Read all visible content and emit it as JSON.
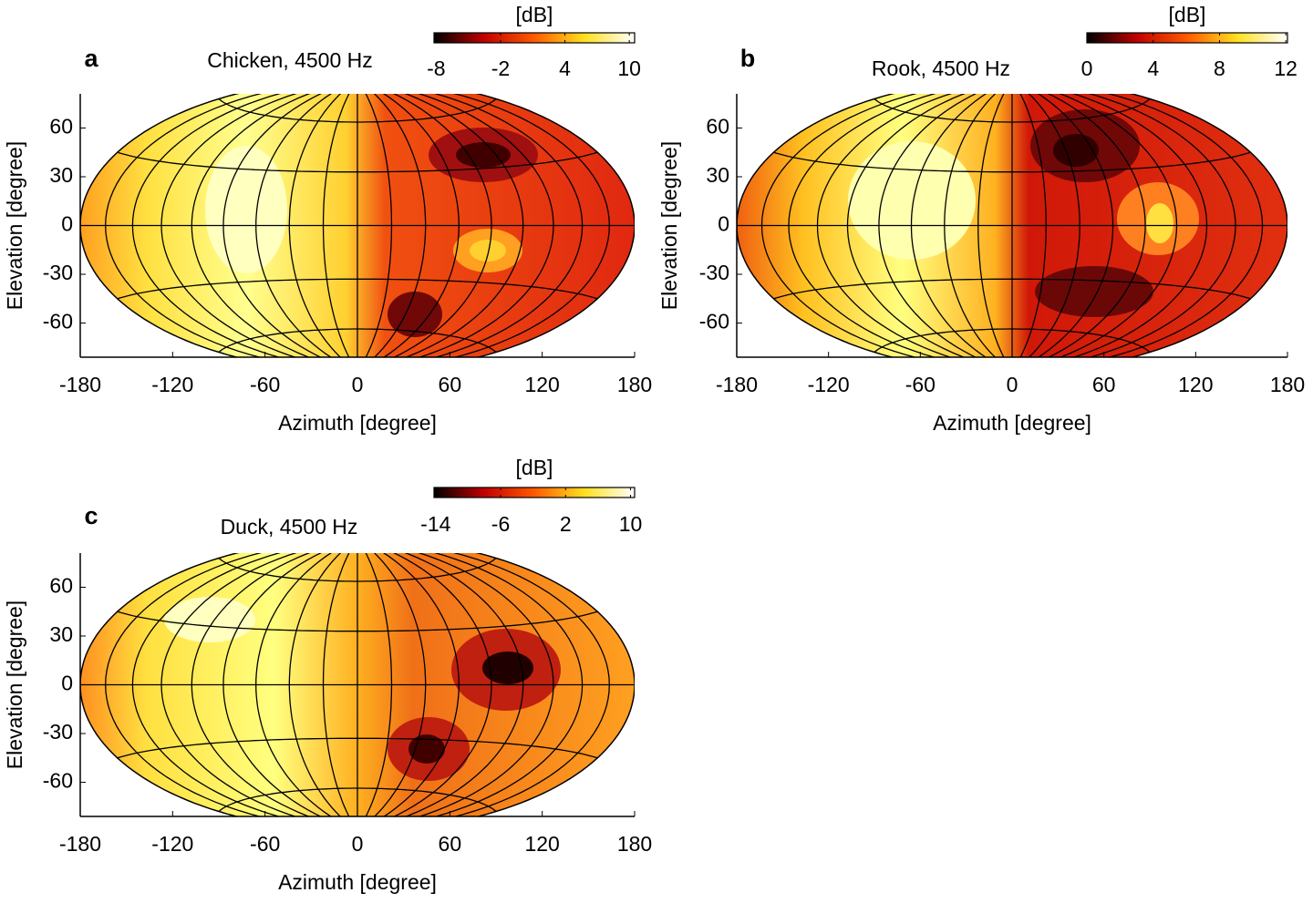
{
  "chart_data": [
    {
      "type": "contour",
      "panel": "a",
      "title": "Chicken, 4500 Hz",
      "xlabel": "Azimuth [degree]",
      "ylabel": "Elevation [degree]",
      "xlim": [
        -180,
        180
      ],
      "ylim": [
        -81,
        81
      ],
      "xticks": [
        -180,
        -120,
        -60,
        0,
        60,
        120,
        180
      ],
      "yticks": [
        -60,
        -30,
        0,
        30,
        60
      ],
      "colormap": [
        "#000000",
        "#c00000",
        "#ff5a00",
        "#ffe020",
        "#ffffff"
      ],
      "colorbar": {
        "label": "[dB]",
        "lim": [
          -8.2,
          10.5
        ],
        "ticks": [
          -8,
          -2,
          4,
          10
        ]
      }
    },
    {
      "type": "contour",
      "panel": "b",
      "title": "Rook, 4500 Hz",
      "xlabel": "Azimuth [degree]",
      "ylabel": "Elevation [degree]",
      "xlim": [
        -180,
        180
      ],
      "ylim": [
        -81,
        81
      ],
      "xticks": [
        -180,
        -120,
        -60,
        0,
        60,
        120,
        180
      ],
      "yticks": [
        -60,
        -30,
        0,
        30,
        60
      ],
      "colormap": [
        "#000000",
        "#c00000",
        "#ff5a00",
        "#ffe020",
        "#ffffff"
      ],
      "colorbar": {
        "label": "[dB]",
        "lim": [
          0,
          12.1
        ],
        "ticks": [
          0,
          4,
          8,
          12
        ]
      }
    },
    {
      "type": "contour",
      "panel": "c",
      "title": "Duck, 4500 Hz",
      "xlabel": "Azimuth [degree]",
      "ylabel": "Elevation [degree]",
      "xlim": [
        -180,
        180
      ],
      "ylim": [
        -81,
        81
      ],
      "xticks": [
        -180,
        -120,
        -60,
        0,
        60,
        120,
        180
      ],
      "yticks": [
        -60,
        -30,
        0,
        30,
        60
      ],
      "colormap": [
        "#000000",
        "#c00000",
        "#ff5a00",
        "#ffe020",
        "#ffffff"
      ],
      "colorbar": {
        "label": "[dB]",
        "lim": [
          -14.2,
          10.5
        ],
        "ticks": [
          -14,
          -6,
          2,
          10
        ]
      }
    }
  ]
}
